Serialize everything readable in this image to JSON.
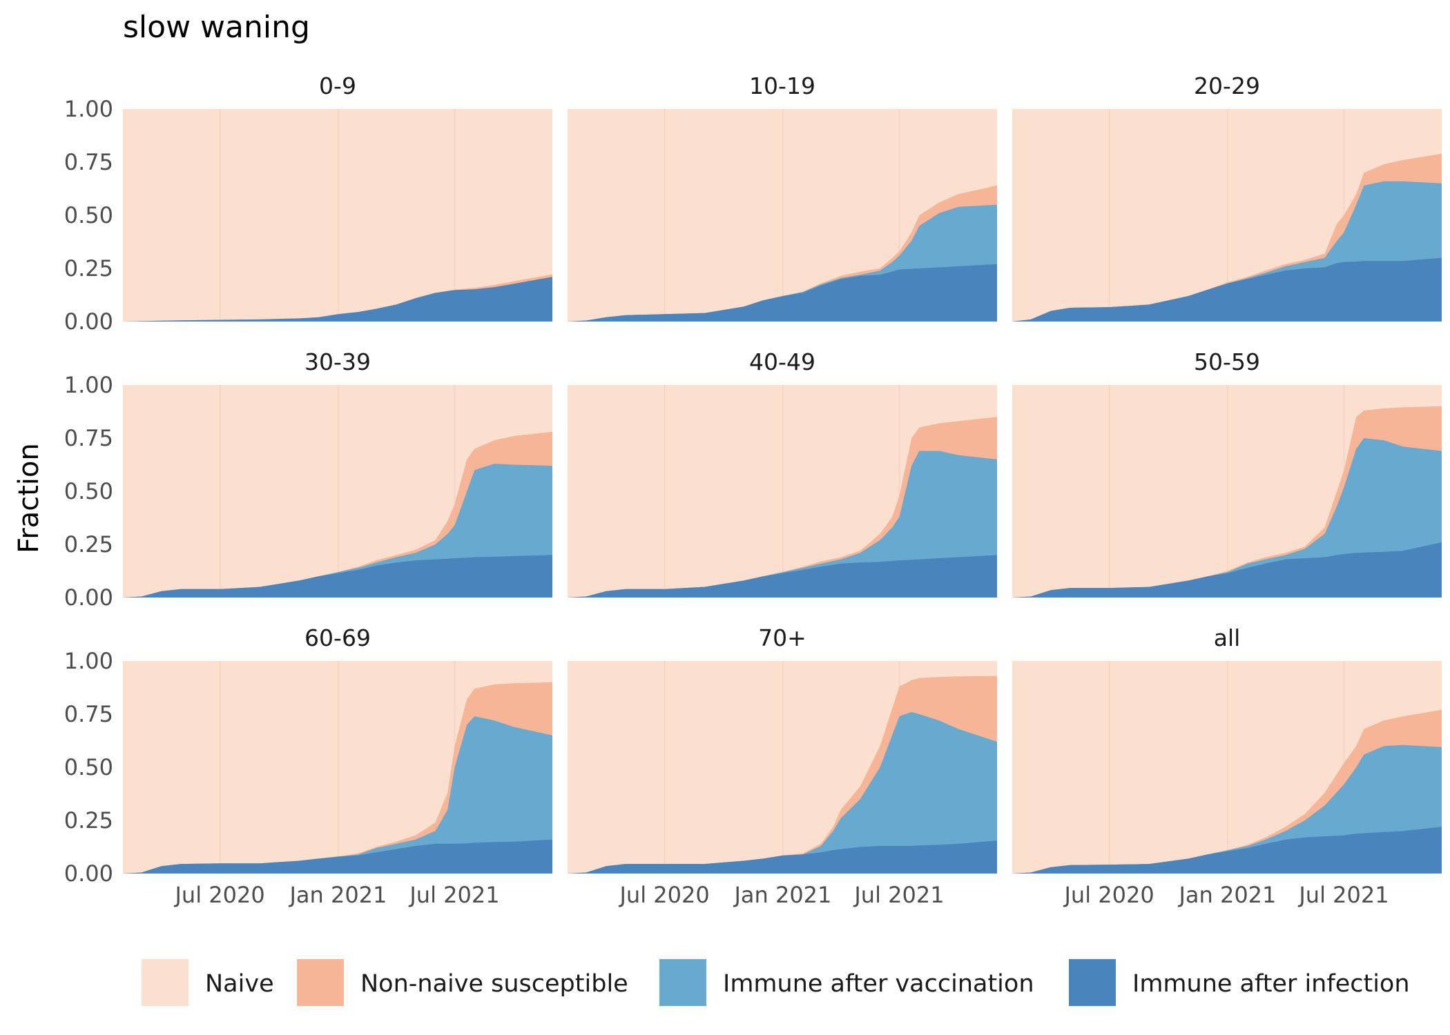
{
  "chart_data": {
    "type": "area",
    "title": "slow waning",
    "ylabel": "Fraction",
    "xlabel": "",
    "ylim": [
      0,
      1
    ],
    "yticks": [
      "0.00",
      "0.25",
      "0.50",
      "0.75",
      "1.00"
    ],
    "xlim": [
      "2020-02-01",
      "2021-11-30"
    ],
    "xticks": [
      {
        "date": "2020-07-01",
        "label": "Jul 2020"
      },
      {
        "date": "2021-01-01",
        "label": "Jan 2021"
      },
      {
        "date": "2021-07-01",
        "label": "Jul 2021"
      }
    ],
    "stacking": "cumulative",
    "legend_position": "bottom",
    "series": [
      {
        "key": "naive",
        "name": "Naive",
        "color": "#fce0cf"
      },
      {
        "key": "nonnaive",
        "name": "Non-naive susceptible",
        "color": "#f5b596"
      },
      {
        "key": "vacc",
        "name": "Immune after vaccination",
        "color": "#67a9cf"
      },
      {
        "key": "inf",
        "name": "Immune after infection",
        "color": "#4a84bd"
      }
    ],
    "panels": [
      {
        "label": "0-9",
        "x": [
          "2020-02-01",
          "2020-03-01",
          "2020-04-01",
          "2020-05-01",
          "2020-07-01",
          "2020-09-01",
          "2020-11-01",
          "2020-12-01",
          "2021-01-01",
          "2021-02-01",
          "2021-03-01",
          "2021-04-01",
          "2021-05-01",
          "2021-06-01",
          "2021-07-01",
          "2021-08-01",
          "2021-09-01",
          "2021-10-01",
          "2021-11-30"
        ],
        "inf": [
          0,
          0.002,
          0.004,
          0.006,
          0.008,
          0.01,
          0.015,
          0.02,
          0.035,
          0.045,
          0.06,
          0.08,
          0.11,
          0.135,
          0.148,
          0.152,
          0.162,
          0.178,
          0.21
        ],
        "vacc": [
          0,
          0,
          0,
          0,
          0,
          0,
          0,
          0,
          0,
          0,
          0,
          0,
          0,
          0,
          0,
          0,
          0,
          0,
          0
        ],
        "susc_top": [
          0,
          0.002,
          0.004,
          0.006,
          0.008,
          0.01,
          0.015,
          0.02,
          0.035,
          0.045,
          0.06,
          0.08,
          0.11,
          0.135,
          0.15,
          0.158,
          0.172,
          0.19,
          0.222
        ]
      },
      {
        "label": "10-19",
        "x": [
          "2020-02-01",
          "2020-03-01",
          "2020-04-01",
          "2020-05-01",
          "2020-07-01",
          "2020-09-01",
          "2020-11-01",
          "2020-12-01",
          "2021-01-01",
          "2021-02-01",
          "2021-03-01",
          "2021-04-01",
          "2021-05-01",
          "2021-06-01",
          "2021-06-20",
          "2021-07-01",
          "2021-07-20",
          "2021-08-01",
          "2021-09-01",
          "2021-10-01",
          "2021-11-30"
        ],
        "inf": [
          0,
          0.005,
          0.02,
          0.03,
          0.035,
          0.04,
          0.07,
          0.1,
          0.12,
          0.135,
          0.17,
          0.2,
          0.215,
          0.22,
          0.235,
          0.245,
          0.248,
          0.25,
          0.255,
          0.26,
          0.27
        ],
        "vacc": [
          0,
          0.005,
          0.02,
          0.03,
          0.035,
          0.04,
          0.07,
          0.1,
          0.12,
          0.14,
          0.175,
          0.205,
          0.22,
          0.24,
          0.28,
          0.31,
          0.38,
          0.45,
          0.51,
          0.54,
          0.55
        ],
        "susc_top": [
          0,
          0.005,
          0.02,
          0.03,
          0.035,
          0.04,
          0.07,
          0.1,
          0.12,
          0.14,
          0.18,
          0.215,
          0.235,
          0.25,
          0.3,
          0.33,
          0.42,
          0.5,
          0.56,
          0.6,
          0.64
        ]
      },
      {
        "label": "20-29",
        "x": [
          "2020-02-01",
          "2020-03-01",
          "2020-04-01",
          "2020-05-01",
          "2020-07-01",
          "2020-09-01",
          "2020-11-01",
          "2020-12-01",
          "2021-01-01",
          "2021-02-01",
          "2021-03-01",
          "2021-04-01",
          "2021-05-01",
          "2021-06-01",
          "2021-06-20",
          "2021-07-01",
          "2021-07-20",
          "2021-08-01",
          "2021-09-01",
          "2021-10-01",
          "2021-11-30"
        ],
        "inf": [
          0,
          0.01,
          0.05,
          0.065,
          0.068,
          0.08,
          0.12,
          0.15,
          0.18,
          0.2,
          0.22,
          0.24,
          0.25,
          0.255,
          0.275,
          0.28,
          0.282,
          0.285,
          0.285,
          0.285,
          0.3
        ],
        "vacc": [
          0,
          0.01,
          0.05,
          0.065,
          0.068,
          0.08,
          0.12,
          0.15,
          0.18,
          0.205,
          0.23,
          0.26,
          0.28,
          0.3,
          0.38,
          0.42,
          0.55,
          0.64,
          0.66,
          0.66,
          0.65
        ],
        "susc_top": [
          0,
          0.01,
          0.05,
          0.065,
          0.068,
          0.08,
          0.12,
          0.15,
          0.185,
          0.21,
          0.24,
          0.27,
          0.29,
          0.32,
          0.46,
          0.5,
          0.6,
          0.7,
          0.74,
          0.76,
          0.79
        ]
      },
      {
        "label": "30-39",
        "x": [
          "2020-02-01",
          "2020-03-01",
          "2020-04-01",
          "2020-05-01",
          "2020-07-01",
          "2020-09-01",
          "2020-11-01",
          "2020-12-01",
          "2021-01-01",
          "2021-02-01",
          "2021-03-01",
          "2021-04-01",
          "2021-05-01",
          "2021-06-01",
          "2021-06-20",
          "2021-07-01",
          "2021-07-20",
          "2021-08-01",
          "2021-09-01",
          "2021-10-01",
          "2021-11-30"
        ],
        "inf": [
          0,
          0.005,
          0.03,
          0.04,
          0.04,
          0.05,
          0.08,
          0.1,
          0.115,
          0.13,
          0.15,
          0.165,
          0.175,
          0.18,
          0.182,
          0.185,
          0.188,
          0.19,
          0.192,
          0.195,
          0.2
        ],
        "vacc": [
          0,
          0.005,
          0.03,
          0.04,
          0.04,
          0.05,
          0.08,
          0.1,
          0.12,
          0.14,
          0.165,
          0.19,
          0.21,
          0.25,
          0.3,
          0.34,
          0.5,
          0.6,
          0.63,
          0.625,
          0.62
        ],
        "susc_top": [
          0,
          0.005,
          0.03,
          0.04,
          0.04,
          0.05,
          0.08,
          0.1,
          0.12,
          0.145,
          0.175,
          0.2,
          0.225,
          0.27,
          0.36,
          0.44,
          0.65,
          0.7,
          0.74,
          0.76,
          0.78
        ]
      },
      {
        "label": "40-49",
        "x": [
          "2020-02-01",
          "2020-03-01",
          "2020-04-01",
          "2020-05-01",
          "2020-07-01",
          "2020-09-01",
          "2020-11-01",
          "2020-12-01",
          "2021-01-01",
          "2021-02-01",
          "2021-03-01",
          "2021-04-01",
          "2021-05-01",
          "2021-06-01",
          "2021-06-20",
          "2021-07-01",
          "2021-07-20",
          "2021-08-01",
          "2021-09-01",
          "2021-10-01",
          "2021-11-30"
        ],
        "inf": [
          0,
          0.005,
          0.03,
          0.04,
          0.04,
          0.05,
          0.08,
          0.1,
          0.115,
          0.13,
          0.145,
          0.16,
          0.165,
          0.168,
          0.172,
          0.175,
          0.178,
          0.18,
          0.185,
          0.19,
          0.2
        ],
        "vacc": [
          0,
          0.005,
          0.03,
          0.04,
          0.04,
          0.05,
          0.08,
          0.1,
          0.12,
          0.14,
          0.16,
          0.18,
          0.21,
          0.27,
          0.33,
          0.38,
          0.62,
          0.69,
          0.69,
          0.67,
          0.65
        ],
        "susc_top": [
          0,
          0.005,
          0.03,
          0.04,
          0.04,
          0.05,
          0.08,
          0.1,
          0.12,
          0.145,
          0.17,
          0.19,
          0.22,
          0.3,
          0.38,
          0.48,
          0.75,
          0.8,
          0.82,
          0.83,
          0.85
        ]
      },
      {
        "label": "50-59",
        "x": [
          "2020-02-01",
          "2020-03-01",
          "2020-04-01",
          "2020-05-01",
          "2020-07-01",
          "2020-09-01",
          "2020-11-01",
          "2020-12-01",
          "2021-01-01",
          "2021-02-01",
          "2021-03-01",
          "2021-04-01",
          "2021-05-01",
          "2021-06-01",
          "2021-06-20",
          "2021-07-01",
          "2021-07-20",
          "2021-08-01",
          "2021-09-01",
          "2021-10-01",
          "2021-11-30"
        ],
        "inf": [
          0,
          0.005,
          0.035,
          0.045,
          0.045,
          0.05,
          0.08,
          0.1,
          0.115,
          0.14,
          0.16,
          0.18,
          0.185,
          0.19,
          0.2,
          0.205,
          0.21,
          0.212,
          0.215,
          0.22,
          0.26
        ],
        "vacc": [
          0,
          0.005,
          0.035,
          0.045,
          0.045,
          0.05,
          0.08,
          0.1,
          0.12,
          0.16,
          0.18,
          0.2,
          0.23,
          0.3,
          0.43,
          0.52,
          0.7,
          0.75,
          0.74,
          0.71,
          0.69
        ],
        "susc_top": [
          0,
          0.005,
          0.035,
          0.045,
          0.045,
          0.05,
          0.08,
          0.1,
          0.125,
          0.165,
          0.19,
          0.21,
          0.24,
          0.33,
          0.5,
          0.6,
          0.85,
          0.88,
          0.89,
          0.895,
          0.9
        ]
      },
      {
        "label": "60-69",
        "x": [
          "2020-02-01",
          "2020-03-01",
          "2020-04-01",
          "2020-05-01",
          "2020-07-01",
          "2020-09-01",
          "2020-11-01",
          "2020-12-01",
          "2021-01-01",
          "2021-02-01",
          "2021-03-01",
          "2021-04-01",
          "2021-05-01",
          "2021-06-01",
          "2021-06-20",
          "2021-07-01",
          "2021-07-20",
          "2021-08-01",
          "2021-09-01",
          "2021-10-01",
          "2021-11-30"
        ],
        "inf": [
          0,
          0.005,
          0.035,
          0.045,
          0.048,
          0.048,
          0.06,
          0.07,
          0.08,
          0.085,
          0.1,
          0.115,
          0.13,
          0.14,
          0.14,
          0.14,
          0.142,
          0.145,
          0.148,
          0.15,
          0.16
        ],
        "vacc": [
          0,
          0.005,
          0.035,
          0.045,
          0.048,
          0.048,
          0.06,
          0.07,
          0.08,
          0.09,
          0.12,
          0.14,
          0.16,
          0.2,
          0.3,
          0.5,
          0.7,
          0.74,
          0.72,
          0.69,
          0.65
        ],
        "susc_top": [
          0,
          0.005,
          0.035,
          0.045,
          0.048,
          0.048,
          0.06,
          0.07,
          0.08,
          0.095,
          0.125,
          0.15,
          0.18,
          0.24,
          0.38,
          0.6,
          0.82,
          0.87,
          0.89,
          0.895,
          0.9
        ]
      },
      {
        "label": "70+",
        "x": [
          "2020-02-01",
          "2020-03-01",
          "2020-04-01",
          "2020-05-01",
          "2020-07-01",
          "2020-09-01",
          "2020-11-01",
          "2020-12-01",
          "2021-01-01",
          "2021-02-01",
          "2021-03-01",
          "2021-03-20",
          "2021-04-01",
          "2021-05-01",
          "2021-06-01",
          "2021-07-01",
          "2021-07-20",
          "2021-08-01",
          "2021-09-01",
          "2021-10-01",
          "2021-11-30"
        ],
        "inf": [
          0,
          0.005,
          0.035,
          0.045,
          0.045,
          0.045,
          0.06,
          0.07,
          0.085,
          0.09,
          0.1,
          0.11,
          0.115,
          0.125,
          0.13,
          0.13,
          0.13,
          0.132,
          0.135,
          0.14,
          0.155
        ],
        "vacc": [
          0,
          0.005,
          0.035,
          0.045,
          0.045,
          0.045,
          0.06,
          0.07,
          0.085,
          0.09,
          0.13,
          0.2,
          0.26,
          0.35,
          0.5,
          0.74,
          0.76,
          0.75,
          0.72,
          0.68,
          0.62
        ],
        "susc_top": [
          0,
          0.005,
          0.035,
          0.045,
          0.045,
          0.045,
          0.06,
          0.07,
          0.085,
          0.095,
          0.14,
          0.22,
          0.3,
          0.41,
          0.6,
          0.88,
          0.91,
          0.92,
          0.925,
          0.928,
          0.93
        ]
      },
      {
        "label": "all",
        "x": [
          "2020-02-01",
          "2020-03-01",
          "2020-04-01",
          "2020-05-01",
          "2020-07-01",
          "2020-09-01",
          "2020-11-01",
          "2020-12-01",
          "2021-01-01",
          "2021-02-01",
          "2021-03-01",
          "2021-04-01",
          "2021-05-01",
          "2021-06-01",
          "2021-07-01",
          "2021-07-20",
          "2021-08-01",
          "2021-09-01",
          "2021-10-01",
          "2021-11-30"
        ],
        "inf": [
          0,
          0.005,
          0.03,
          0.04,
          0.042,
          0.045,
          0.07,
          0.09,
          0.105,
          0.12,
          0.14,
          0.16,
          0.17,
          0.175,
          0.18,
          0.188,
          0.19,
          0.195,
          0.2,
          0.22
        ],
        "vacc": [
          0,
          0.005,
          0.03,
          0.04,
          0.042,
          0.045,
          0.07,
          0.09,
          0.11,
          0.13,
          0.16,
          0.2,
          0.25,
          0.32,
          0.42,
          0.5,
          0.56,
          0.6,
          0.605,
          0.595
        ],
        "susc_top": [
          0,
          0.005,
          0.03,
          0.04,
          0.042,
          0.045,
          0.07,
          0.09,
          0.11,
          0.135,
          0.17,
          0.22,
          0.28,
          0.38,
          0.52,
          0.6,
          0.68,
          0.72,
          0.74,
          0.77
        ]
      }
    ]
  }
}
